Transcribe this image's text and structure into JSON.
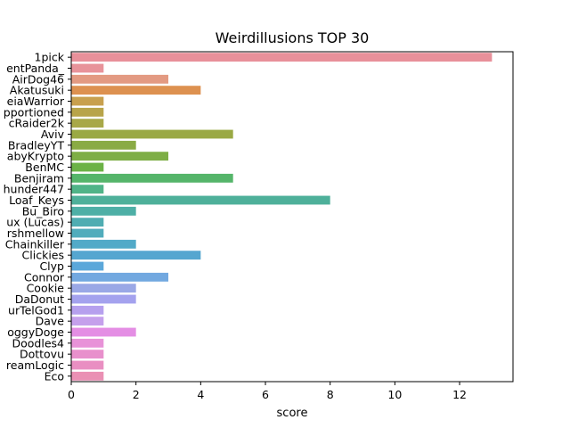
{
  "chart_data": {
    "type": "bar",
    "orientation": "horizontal",
    "title": "Weirdillusions TOP 30",
    "xlabel": "score",
    "ylabel": "",
    "xlim": [
      0,
      13.65
    ],
    "xticks": [
      0,
      2,
      4,
      6,
      8,
      10,
      12
    ],
    "grid": false,
    "categories": [
      "1pick",
      "entPanda_",
      "AirDog46",
      "Akatusuki",
      "eiaWarrior",
      "pportioned",
      "cRaider2k",
      "Aviv",
      "BradleyYT",
      "abyKrypto",
      "BenMC",
      "Benjiram",
      "hunder447",
      "Loaf_Keys",
      "Bu_Biro",
      "ux (Lucas)",
      "rshmellow",
      "Chainkiller",
      "Clickies",
      "Clyp",
      "Connor",
      "Cookie",
      "DaDonut",
      "urTelGod1",
      "Dave",
      "oggyDoge",
      "Doodles4",
      "Dottovu",
      "reamLogic",
      "Eco"
    ],
    "values": [
      13,
      1,
      3,
      4,
      1,
      1,
      1,
      5,
      2,
      3,
      1,
      5,
      1,
      8,
      2,
      1,
      1,
      2,
      4,
      1,
      3,
      2,
      2,
      1,
      1,
      2,
      1,
      1,
      1,
      1
    ],
    "colors": [
      "#e8909a",
      "#e8939a",
      "#e39a82",
      "#dd9150",
      "#c8a04e",
      "#b8a44a",
      "#a8a848",
      "#9aa944",
      "#8aab44",
      "#7eae46",
      "#6bb246",
      "#55b56a",
      "#50b488",
      "#4eb09a",
      "#4eafa6",
      "#4fadb2",
      "#50acbc",
      "#52aac8",
      "#55a6d0",
      "#5ba7da",
      "#72a8e0",
      "#9aa8e6",
      "#a4a2ee",
      "#b6a0ee",
      "#c5a0ec",
      "#e48ee4",
      "#e892d8",
      "#e890cc",
      "#e98fc2",
      "#ea90b4"
    ]
  }
}
